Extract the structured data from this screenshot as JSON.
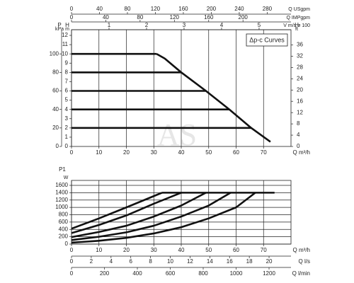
{
  "chart_data": [
    {
      "type": "line",
      "legend_title": "Δp-c Curves",
      "watermark": "AS",
      "x_label": "Q m³/h",
      "xlim": [
        0,
        80
      ],
      "xticks": [
        0,
        10,
        20,
        30,
        40,
        50,
        60,
        70
      ],
      "y_label": "H",
      "y_unit": "m",
      "ylim": [
        0,
        12
      ],
      "yticks": [
        0,
        1,
        2,
        3,
        4,
        5,
        6,
        7,
        8,
        9,
        10,
        11,
        12
      ],
      "p_label": "P",
      "p_unit": "kPa",
      "plim": [
        0,
        120
      ],
      "pticks": [
        0,
        20,
        40,
        60,
        80,
        100
      ],
      "y2_label": "H",
      "y2_unit": "ft",
      "y2lim": [
        0,
        39.4
      ],
      "y2ticks": [
        0,
        4,
        8,
        12,
        16,
        20,
        24,
        28,
        32,
        36
      ],
      "top_axes": [
        {
          "label": "Q USgpm",
          "lim": [
            0,
            314
          ],
          "ticks": [
            0,
            40,
            80,
            120,
            160,
            200,
            240,
            280
          ]
        },
        {
          "label": "Q IMPgpm",
          "lim": [
            0,
            256
          ],
          "ticks": [
            0,
            40,
            80,
            120,
            160,
            200
          ]
        },
        {
          "label": "V m/s ø 100",
          "lim": [
            0,
            5.85
          ],
          "ticks": [
            1,
            2,
            3,
            4,
            5
          ]
        }
      ],
      "grid": "x",
      "color": "#111111",
      "series": [
        {
          "x": [
            0,
            31
          ],
          "values": [
            10,
            10
          ]
        },
        {
          "x": [
            0,
            40
          ],
          "values": [
            8,
            8
          ]
        },
        {
          "x": [
            0,
            49
          ],
          "values": [
            6,
            6
          ]
        },
        {
          "x": [
            0,
            57.5
          ],
          "values": [
            4,
            4
          ]
        },
        {
          "x": [
            0,
            65.5
          ],
          "values": [
            2,
            2
          ]
        },
        {
          "x": [
            31,
            34,
            40,
            49,
            57.5,
            65.5,
            72.5
          ],
          "values": [
            10,
            9.5,
            8,
            6,
            4,
            2,
            0.5
          ]
        }
      ]
    },
    {
      "type": "line",
      "x_label": "Q m³/h",
      "xlim": [
        0,
        80
      ],
      "xticks": [
        0,
        10,
        20,
        30,
        40,
        50,
        60,
        70
      ],
      "y_label": "P1",
      "y_unit": "W",
      "ylim": [
        0,
        1600
      ],
      "yticks": [
        0,
        200,
        400,
        600,
        800,
        1000,
        1200,
        1400,
        1600
      ],
      "bottom_axes": [
        {
          "label": "Q l/s",
          "lim": [
            0,
            22.22
          ],
          "ticks": [
            0,
            2,
            4,
            6,
            8,
            10,
            12,
            14,
            16,
            18,
            20
          ]
        },
        {
          "label": "Q l/min",
          "lim": [
            0,
            1333.3
          ],
          "ticks": [
            0,
            200,
            400,
            600,
            800,
            1000,
            1200
          ]
        }
      ],
      "grid": "both",
      "color": "#111111",
      "series": [
        {
          "x": [
            0,
            10,
            20,
            33
          ],
          "values": [
            420,
            700,
            1000,
            1400
          ]
        },
        {
          "x": [
            0,
            10,
            20,
            30,
            40
          ],
          "values": [
            300,
            520,
            780,
            1100,
            1400
          ]
        },
        {
          "x": [
            0,
            10,
            20,
            30,
            40,
            49
          ],
          "values": [
            190,
            330,
            500,
            750,
            1050,
            1400
          ]
        },
        {
          "x": [
            0,
            10,
            20,
            30,
            40,
            50,
            58
          ],
          "values": [
            110,
            200,
            320,
            500,
            750,
            1050,
            1400
          ]
        },
        {
          "x": [
            0,
            10,
            20,
            30,
            40,
            50,
            60,
            67
          ],
          "values": [
            40,
            90,
            170,
            290,
            460,
            700,
            1000,
            1400
          ]
        },
        {
          "x": [
            33,
            74
          ],
          "values": [
            1400,
            1400
          ]
        }
      ]
    }
  ]
}
